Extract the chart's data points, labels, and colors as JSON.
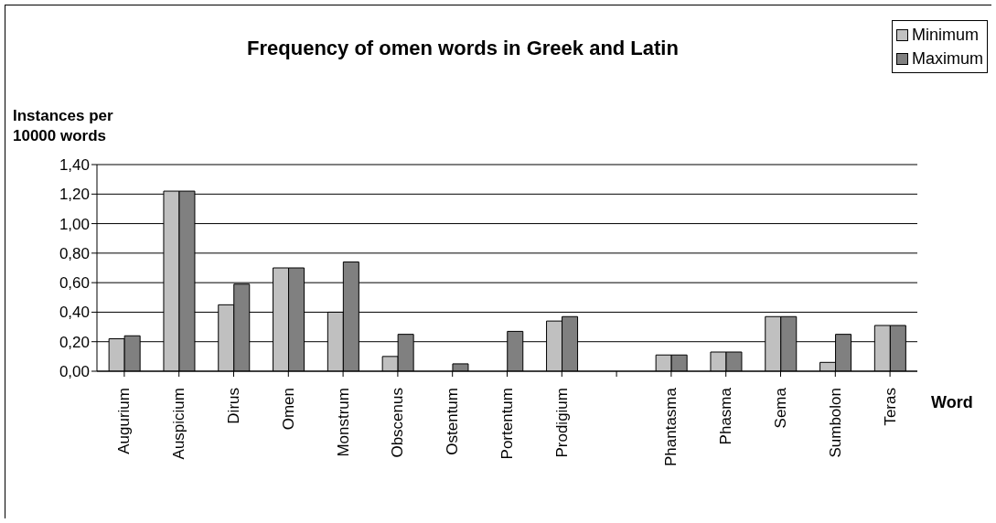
{
  "chart_data": {
    "type": "bar",
    "title": "Frequency of omen words in Greek and Latin",
    "xlabel": "Word",
    "ylabel": "Instances per 10000 words",
    "categories": [
      "Augurium",
      "Auspicium",
      "Dirus",
      "Omen",
      "Monstrum",
      "Obscenus",
      "Ostentum",
      "Portentum",
      "Prodigium",
      null,
      "Phantasma",
      "Phasma",
      "Sema",
      "Sumbolon",
      "Teras"
    ],
    "series": [
      {
        "name": "Minimum",
        "color": "#c0c0c0",
        "values": [
          0.22,
          1.22,
          0.45,
          0.7,
          0.4,
          0.1,
          null,
          null,
          0.34,
          null,
          0.11,
          0.13,
          0.37,
          0.06,
          0.31
        ]
      },
      {
        "name": "Maximum",
        "color": "#808080",
        "values": [
          0.24,
          1.22,
          0.59,
          0.7,
          0.74,
          0.25,
          0.05,
          0.27,
          0.37,
          null,
          0.11,
          0.13,
          0.37,
          0.25,
          0.31
        ]
      }
    ],
    "ylim": [
      0,
      1.4
    ],
    "yticks": [
      {
        "value": 0,
        "label": "0,00"
      },
      {
        "value": 0.2,
        "label": "0,20"
      },
      {
        "value": 0.4,
        "label": "0,40"
      },
      {
        "value": 0.6,
        "label": "0,60"
      },
      {
        "value": 0.8,
        "label": "0,80"
      },
      {
        "value": 1.0,
        "label": "1,00"
      },
      {
        "value": 1.2,
        "label": "1,20"
      },
      {
        "value": 1.4,
        "label": "1,40"
      }
    ],
    "grid": "y",
    "legend": "top right"
  }
}
